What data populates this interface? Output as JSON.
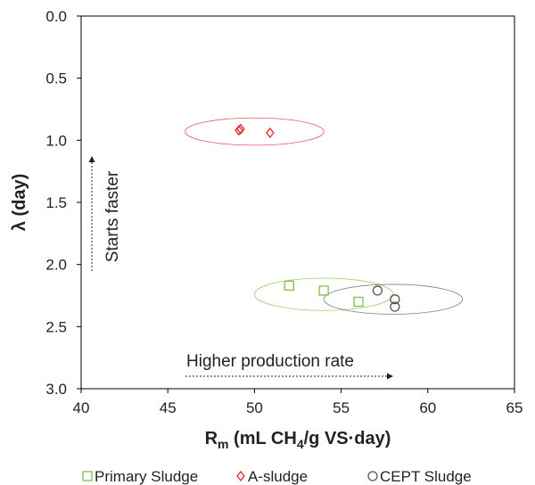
{
  "chart_data": {
    "type": "scatter",
    "xlabel_main": "R",
    "xlabel_sub": "m",
    "xlabel_mid": " (mL CH",
    "xlabel_sub2": "4",
    "xlabel_end": "/g VS·day)",
    "ylabel": "λ (day)",
    "xlim": [
      40,
      65
    ],
    "ylim": [
      0,
      3
    ],
    "y_inverted": true,
    "x_ticks": [
      40,
      45,
      50,
      55,
      60,
      65
    ],
    "y_ticks": [
      "0.0",
      "0.5",
      "1.0",
      "1.5",
      "2.0",
      "2.5",
      "3.0"
    ],
    "grid": false,
    "legend_position": "bottom",
    "series": [
      {
        "name": "Primary Sludge",
        "marker": "square",
        "color": "#7dc04b",
        "points": [
          [
            52.0,
            2.17
          ],
          [
            54.0,
            2.21
          ],
          [
            56.0,
            2.3
          ]
        ],
        "ellipse": {
          "cx": 54.0,
          "cy": 2.24,
          "rx": 4.0,
          "ry": 0.13
        }
      },
      {
        "name": "A-sludge",
        "marker": "diamond",
        "color": "#e8222a",
        "points": [
          [
            49.1,
            0.92
          ],
          [
            49.2,
            0.91
          ],
          [
            50.9,
            0.94
          ]
        ],
        "ellipse": {
          "cx": 50.0,
          "cy": 0.93,
          "rx": 4.0,
          "ry": 0.11
        }
      },
      {
        "name": "CEPT Sludge",
        "marker": "circle",
        "color": "#555555",
        "points": [
          [
            57.1,
            2.21
          ],
          [
            58.1,
            2.28
          ],
          [
            58.1,
            2.34
          ]
        ],
        "ellipse": {
          "cx": 58.0,
          "cy": 2.28,
          "rx": 4.0,
          "ry": 0.12
        }
      }
    ],
    "annotations": [
      {
        "text": "Starts faster",
        "arrow": "up"
      },
      {
        "text": "Higher production rate",
        "arrow": "right"
      }
    ]
  }
}
